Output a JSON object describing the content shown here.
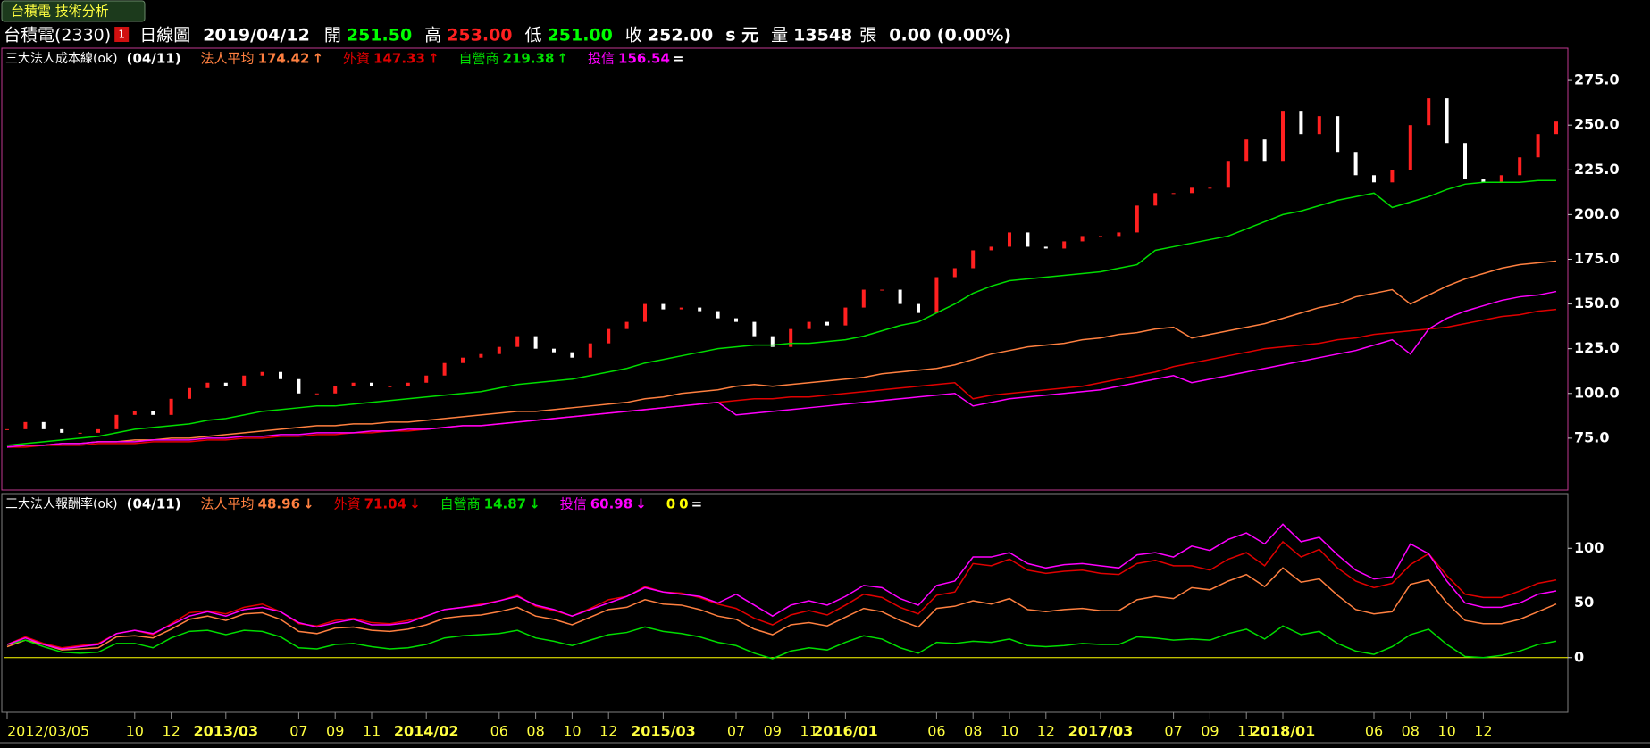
{
  "header": {
    "tab": "台積電 技術分析",
    "stock": "台積電(2330)",
    "badge": "1",
    "period": "日線圖",
    "date": "2019/04/12",
    "fields": [
      {
        "label": "開",
        "value": "251.50",
        "color": "#00ff00"
      },
      {
        "label": "高",
        "value": "253.00",
        "color": "#ff2020"
      },
      {
        "label": "低",
        "value": "251.00",
        "color": "#00ff00"
      },
      {
        "label": "收",
        "value": "252.00",
        "color": "#ffffff"
      }
    ],
    "unit": "s 元",
    "volume_label": "量",
    "volume": 13548,
    "volume_unit": "張",
    "change": "0.00 (0.00%)"
  },
  "chart_data": [
    {
      "type": "line",
      "title": "三大法人成本線(ok)",
      "date": "(04/11)",
      "ylim": [
        46,
        293
      ],
      "yticks": [
        {
          "value": 75,
          "label": "75.0"
        },
        {
          "value": 100,
          "label": "100.0"
        },
        {
          "value": 125,
          "label": "125.0"
        },
        {
          "value": 150,
          "label": "150.0"
        },
        {
          "value": 175,
          "label": "175.0"
        },
        {
          "value": 200,
          "label": "200.0"
        },
        {
          "value": 225,
          "label": "225.0"
        },
        {
          "value": 250,
          "label": "250.0"
        },
        {
          "value": 275,
          "label": "275.0"
        }
      ],
      "price": {
        "color": "#ffffff",
        "up_color": "#ff2020",
        "values": [
          80,
          84,
          80,
          78,
          78,
          80,
          88,
          90,
          88,
          97,
          103,
          106,
          104,
          110,
          112,
          108,
          100,
          100,
          104,
          106,
          104,
          104,
          106,
          110,
          117,
          120,
          122,
          126,
          132,
          125,
          123,
          120,
          128,
          136,
          140,
          150,
          147,
          148,
          146,
          142,
          140,
          132,
          126,
          136,
          140,
          138,
          148,
          158,
          158,
          150,
          145,
          165,
          170,
          180,
          182,
          190,
          182,
          181,
          185,
          188,
          188,
          190,
          205,
          212,
          212,
          215,
          215,
          230,
          242,
          230,
          258,
          245,
          255,
          235,
          222,
          218,
          225,
          250,
          265,
          240,
          220,
          218,
          222,
          232,
          245,
          252
        ]
      },
      "series": [
        {
          "name": "法人平均",
          "color": "#ff8040",
          "latest": 174.42,
          "trend": "↑",
          "values": [
            70,
            71,
            71,
            72,
            72,
            73,
            73,
            74,
            74,
            75,
            75,
            76,
            77,
            78,
            79,
            80,
            81,
            82,
            82,
            83,
            83,
            84,
            84,
            85,
            86,
            87,
            88,
            89,
            90,
            90,
            91,
            92,
            93,
            94,
            95,
            97,
            98,
            100,
            101,
            102,
            104,
            105,
            104,
            105,
            106,
            107,
            108,
            109,
            111,
            112,
            113,
            114,
            116,
            119,
            122,
            124,
            126,
            127,
            128,
            130,
            131,
            133,
            134,
            136,
            137,
            131,
            133,
            135,
            137,
            139,
            142,
            145,
            148,
            150,
            154,
            156,
            158,
            150,
            155,
            160,
            164,
            167,
            170,
            172,
            173,
            174
          ]
        },
        {
          "name": "外資",
          "color": "#e00000",
          "latest": 147.33,
          "trend": "↑",
          "values": [
            70,
            70,
            71,
            71,
            71,
            72,
            72,
            72,
            73,
            73,
            73,
            74,
            74,
            75,
            75,
            76,
            76,
            77,
            77,
            78,
            78,
            79,
            79,
            80,
            81,
            82,
            82,
            83,
            84,
            85,
            86,
            87,
            88,
            89,
            90,
            91,
            92,
            93,
            94,
            95,
            96,
            97,
            97,
            98,
            98,
            99,
            100,
            101,
            102,
            103,
            104,
            105,
            106,
            97,
            99,
            100,
            101,
            102,
            103,
            104,
            106,
            108,
            110,
            112,
            115,
            117,
            119,
            121,
            123,
            125,
            126,
            127,
            128,
            130,
            131,
            133,
            134,
            135,
            136,
            137,
            139,
            141,
            143,
            144,
            146,
            147
          ]
        },
        {
          "name": "自營商",
          "color": "#00dd00",
          "latest": 219.38,
          "trend": "↑",
          "values": [
            71,
            72,
            73,
            74,
            75,
            76,
            78,
            80,
            81,
            82,
            83,
            85,
            86,
            88,
            90,
            91,
            92,
            93,
            93,
            94,
            95,
            96,
            97,
            98,
            99,
            100,
            101,
            103,
            105,
            106,
            107,
            108,
            110,
            112,
            114,
            117,
            119,
            121,
            123,
            125,
            126,
            127,
            127,
            128,
            128,
            129,
            130,
            132,
            135,
            138,
            140,
            145,
            150,
            156,
            160,
            163,
            164,
            165,
            166,
            167,
            168,
            170,
            172,
            180,
            182,
            184,
            186,
            188,
            192,
            196,
            200,
            202,
            205,
            208,
            210,
            212,
            204,
            207,
            210,
            214,
            217,
            218,
            218,
            218,
            219,
            219
          ]
        },
        {
          "name": "投信",
          "color": "#ff00ff",
          "latest": 156.54,
          "trend": "=",
          "values": [
            70,
            71,
            71,
            72,
            72,
            73,
            73,
            73,
            74,
            74,
            74,
            75,
            75,
            76,
            76,
            77,
            77,
            78,
            78,
            78,
            79,
            79,
            80,
            80,
            81,
            82,
            82,
            83,
            84,
            85,
            86,
            87,
            88,
            89,
            90,
            91,
            92,
            93,
            94,
            95,
            88,
            89,
            90,
            91,
            92,
            93,
            94,
            95,
            96,
            97,
            98,
            99,
            100,
            93,
            95,
            97,
            98,
            99,
            100,
            101,
            102,
            104,
            106,
            108,
            110,
            106,
            108,
            110,
            112,
            114,
            116,
            118,
            120,
            122,
            124,
            127,
            130,
            122,
            136,
            142,
            146,
            149,
            152,
            154,
            155,
            157
          ]
        }
      ]
    },
    {
      "type": "line",
      "title": "三大法人報酬率(ok)",
      "date": "(04/11)",
      "ylim": [
        -50,
        150
      ],
      "yticks": [
        0,
        50,
        100
      ],
      "categories": [
        "2012/03/05",
        null,
        null,
        null,
        null,
        null,
        null,
        "10",
        null,
        "12",
        null,
        null,
        "2013/03",
        null,
        null,
        null,
        "07",
        null,
        "09",
        null,
        "11",
        null,
        null,
        "2014/02",
        null,
        null,
        null,
        "06",
        null,
        "08",
        null,
        "10",
        null,
        "12",
        null,
        null,
        "2015/03",
        null,
        null,
        null,
        "07",
        null,
        "09",
        null,
        "11",
        null,
        "2016/01",
        null,
        null,
        null,
        null,
        "06",
        null,
        "08",
        null,
        "10",
        null,
        "12",
        null,
        null,
        "2017/03",
        null,
        null,
        null,
        "07",
        null,
        "09",
        null,
        "11",
        null,
        "2018/01",
        null,
        null,
        null,
        null,
        "06",
        null,
        "08",
        null,
        "10",
        null,
        "12",
        null,
        null,
        null,
        null
      ],
      "reference": {
        "name": "0",
        "value": 0,
        "color": "#ffff00",
        "trend": "="
      },
      "series": [
        {
          "name": "法人平均",
          "color": "#ff8040",
          "latest": 48.96,
          "trend": "↓",
          "values": [
            10,
            16,
            12,
            7,
            8,
            9,
            19,
            20,
            18,
            26,
            35,
            38,
            34,
            40,
            41,
            35,
            24,
            22,
            27,
            28,
            25,
            24,
            26,
            30,
            36,
            38,
            39,
            42,
            46,
            38,
            35,
            30,
            37,
            44,
            46,
            53,
            49,
            48,
            44,
            38,
            35,
            26,
            21,
            30,
            32,
            29,
            37,
            45,
            42,
            34,
            28,
            45,
            47,
            52,
            49,
            54,
            44,
            42,
            44,
            45,
            43,
            43,
            53,
            56,
            54,
            64,
            62,
            70,
            76,
            65,
            82,
            69,
            72,
            57,
            44,
            40,
            42,
            67,
            71,
            50,
            34,
            31,
            31,
            35,
            42,
            49
          ]
        },
        {
          "name": "外資",
          "color": "#e00000",
          "latest": 71.04,
          "trend": "↓",
          "values": [
            12,
            19,
            13,
            9,
            11,
            13,
            22,
            25,
            21,
            31,
            41,
            43,
            40,
            46,
            49,
            42,
            31,
            29,
            34,
            36,
            32,
            31,
            34,
            38,
            44,
            46,
            49,
            52,
            57,
            47,
            43,
            38,
            45,
            53,
            56,
            65,
            60,
            59,
            55,
            49,
            45,
            36,
            30,
            39,
            43,
            39,
            48,
            58,
            55,
            46,
            40,
            57,
            60,
            86,
            84,
            90,
            80,
            77,
            79,
            80,
            77,
            76,
            86,
            89,
            84,
            84,
            80,
            90,
            96,
            84,
            106,
            92,
            99,
            82,
            70,
            64,
            68,
            85,
            95,
            75,
            58,
            55,
            55,
            61,
            68,
            71
          ]
        },
        {
          "name": "自營商",
          "color": "#00dd00",
          "latest": 14.87,
          "trend": "↓",
          "values": [
            12,
            16,
            10,
            5,
            4,
            5,
            13,
            13,
            9,
            18,
            24,
            25,
            21,
            25,
            24,
            19,
            9,
            8,
            12,
            13,
            10,
            8,
            9,
            12,
            18,
            20,
            21,
            22,
            25,
            18,
            15,
            11,
            16,
            21,
            23,
            28,
            24,
            22,
            19,
            14,
            11,
            4,
            -1,
            6,
            9,
            7,
            14,
            20,
            17,
            9,
            4,
            14,
            13,
            15,
            14,
            17,
            11,
            10,
            11,
            13,
            12,
            12,
            19,
            18,
            16,
            17,
            16,
            22,
            26,
            17,
            29,
            21,
            24,
            13,
            6,
            3,
            10,
            21,
            26,
            12,
            1,
            0,
            2,
            6,
            12,
            15
          ]
        },
        {
          "name": "投信",
          "color": "#ff00ff",
          "latest": 60.98,
          "trend": "↓",
          "values": [
            12,
            18,
            12,
            8,
            10,
            12,
            22,
            25,
            22,
            30,
            38,
            42,
            38,
            44,
            46,
            42,
            32,
            28,
            32,
            35,
            30,
            30,
            32,
            38,
            44,
            46,
            48,
            52,
            56,
            48,
            44,
            38,
            44,
            50,
            56,
            64,
            60,
            58,
            56,
            50,
            58,
            48,
            38,
            48,
            52,
            48,
            56,
            66,
            64,
            54,
            48,
            66,
            70,
            92,
            92,
            96,
            86,
            82,
            85,
            86,
            84,
            82,
            94,
            96,
            92,
            102,
            98,
            108,
            114,
            104,
            122,
            106,
            110,
            94,
            80,
            72,
            74,
            104,
            95,
            70,
            50,
            46,
            46,
            50,
            58,
            61
          ]
        }
      ]
    }
  ]
}
